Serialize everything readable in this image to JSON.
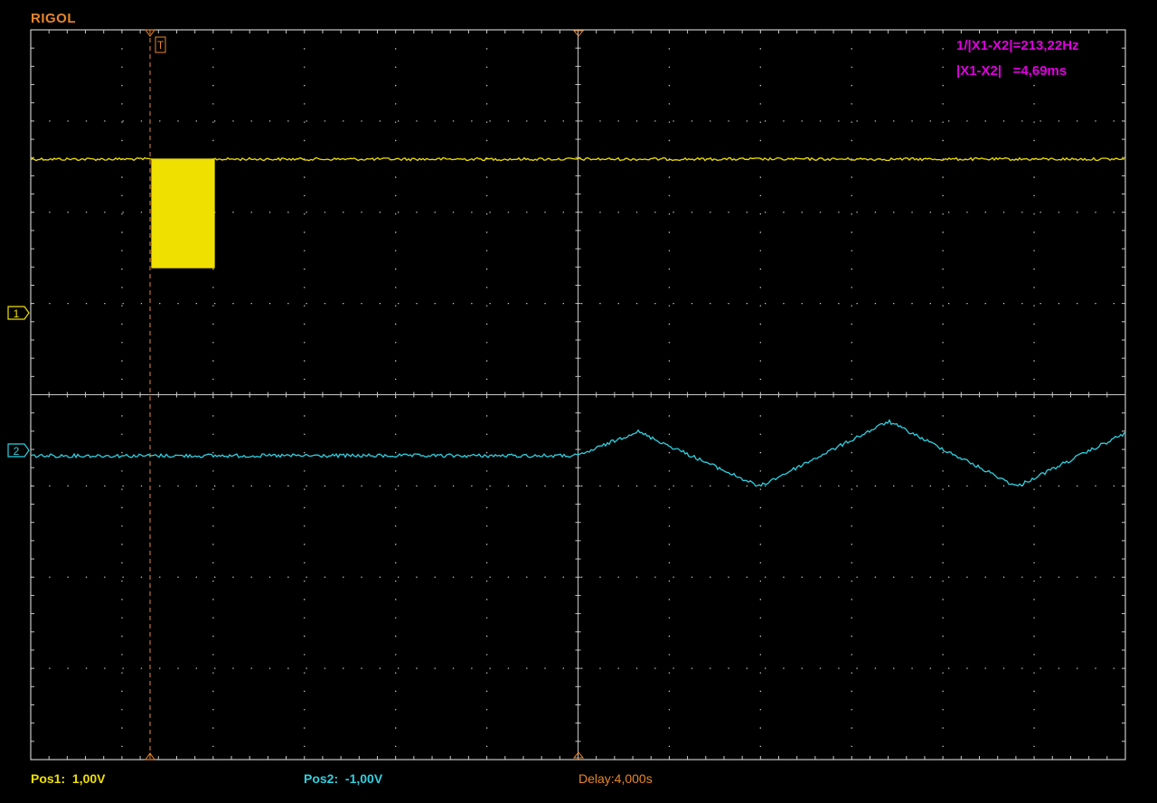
{
  "header": {
    "brand": "RIGOL"
  },
  "markers": {
    "trigger_label": "T",
    "ch1_label": "1",
    "ch2_label": "2"
  },
  "measurements": {
    "freq": "1/|X1-X2|=213,22Hz",
    "delta": "|X1-X2|   =4,69ms"
  },
  "footer": {
    "pos1": "Pos1:  1,00V",
    "pos2": "Pos2:  -1,00V",
    "delay": "Delay:4,000s"
  },
  "colors": {
    "brand": "#e8862b",
    "grid": "#c8c8c8",
    "ch1": "#f0e000",
    "ch2": "#2fd0e0",
    "measure": "#e000e0",
    "trigger": "#e8862b"
  }
}
